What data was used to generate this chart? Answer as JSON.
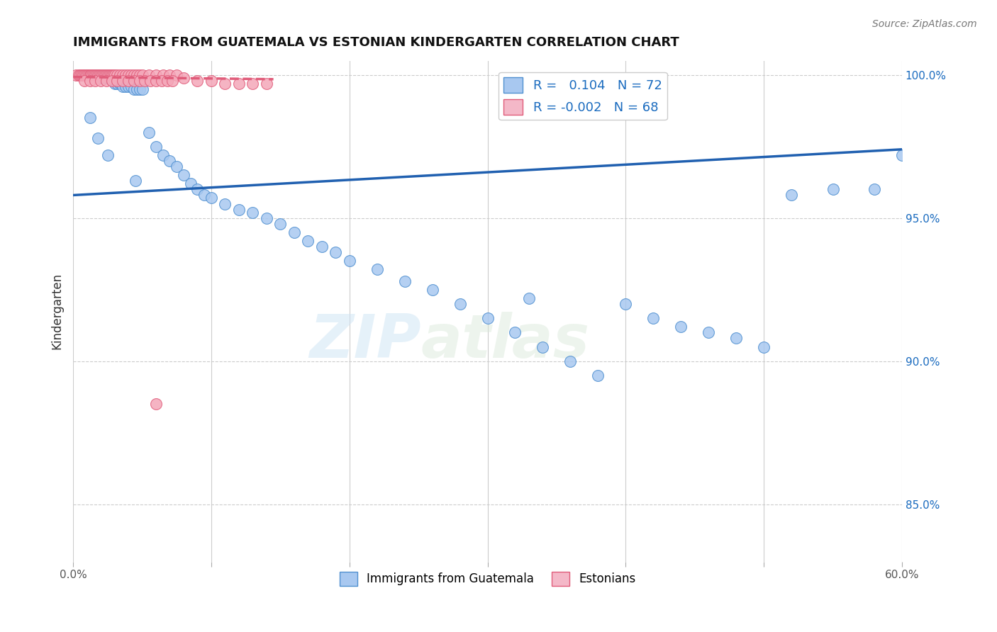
{
  "title": "IMMIGRANTS FROM GUATEMALA VS ESTONIAN KINDERGARTEN CORRELATION CHART",
  "source": "Source: ZipAtlas.com",
  "ylabel": "Kindergarten",
  "xlim": [
    0.0,
    0.6
  ],
  "ylim": [
    0.83,
    1.005
  ],
  "xticks": [
    0.0,
    0.1,
    0.2,
    0.3,
    0.4,
    0.5,
    0.6
  ],
  "xticklabels": [
    "0.0%",
    "",
    "",
    "",
    "",
    "",
    "60.0%"
  ],
  "yticks_right": [
    0.85,
    0.9,
    0.95,
    1.0
  ],
  "ytick_labels_right": [
    "85.0%",
    "90.0%",
    "95.0%",
    "100.0%"
  ],
  "R_blue": "0.104",
  "N_blue": 72,
  "R_pink": "-0.002",
  "N_pink": 68,
  "blue_color": "#a8c8f0",
  "pink_color": "#f4a7b9",
  "blue_edge_color": "#5090d0",
  "pink_edge_color": "#e05c7a",
  "blue_line_color": "#2060b0",
  "pink_line_color": "#e05c7a",
  "legend_blue_fill": "#a8c8f0",
  "legend_pink_fill": "#f4b8c8",
  "blue_scatter_x": [
    0.008,
    0.01,
    0.012,
    0.013,
    0.014,
    0.015,
    0.016,
    0.017,
    0.018,
    0.019,
    0.02,
    0.022,
    0.024,
    0.025,
    0.027,
    0.028,
    0.03,
    0.032,
    0.034,
    0.035,
    0.036,
    0.038,
    0.04,
    0.042,
    0.044,
    0.046,
    0.048,
    0.05,
    0.055,
    0.06,
    0.065,
    0.07,
    0.075,
    0.08,
    0.085,
    0.09,
    0.095,
    0.1,
    0.11,
    0.12,
    0.13,
    0.14,
    0.15,
    0.16,
    0.17,
    0.18,
    0.19,
    0.2,
    0.22,
    0.24,
    0.26,
    0.28,
    0.3,
    0.32,
    0.34,
    0.36,
    0.38,
    0.4,
    0.42,
    0.44,
    0.46,
    0.48,
    0.5,
    0.52,
    0.55,
    0.58,
    0.6,
    0.012,
    0.018,
    0.025,
    0.045,
    0.33
  ],
  "blue_scatter_y": [
    1.0,
    1.0,
    1.0,
    1.0,
    1.0,
    1.0,
    1.0,
    1.0,
    1.0,
    1.0,
    0.999,
    0.999,
    0.999,
    0.999,
    0.999,
    0.998,
    0.997,
    0.997,
    0.997,
    0.997,
    0.996,
    0.996,
    0.996,
    0.996,
    0.995,
    0.995,
    0.995,
    0.995,
    0.98,
    0.975,
    0.972,
    0.97,
    0.968,
    0.965,
    0.962,
    0.96,
    0.958,
    0.957,
    0.955,
    0.953,
    0.952,
    0.95,
    0.948,
    0.945,
    0.942,
    0.94,
    0.938,
    0.935,
    0.932,
    0.928,
    0.925,
    0.92,
    0.915,
    0.91,
    0.905,
    0.9,
    0.895,
    0.92,
    0.915,
    0.912,
    0.91,
    0.908,
    0.905,
    0.958,
    0.96,
    0.96,
    0.972,
    0.985,
    0.978,
    0.972,
    0.963,
    0.922
  ],
  "pink_scatter_x": [
    0.002,
    0.004,
    0.005,
    0.006,
    0.007,
    0.008,
    0.009,
    0.01,
    0.011,
    0.012,
    0.013,
    0.014,
    0.015,
    0.016,
    0.017,
    0.018,
    0.019,
    0.02,
    0.021,
    0.022,
    0.023,
    0.024,
    0.025,
    0.026,
    0.027,
    0.028,
    0.029,
    0.03,
    0.032,
    0.034,
    0.036,
    0.038,
    0.04,
    0.042,
    0.044,
    0.046,
    0.048,
    0.05,
    0.055,
    0.06,
    0.065,
    0.07,
    0.075,
    0.08,
    0.09,
    0.1,
    0.11,
    0.12,
    0.13,
    0.14,
    0.008,
    0.012,
    0.016,
    0.02,
    0.024,
    0.028,
    0.032,
    0.036,
    0.04,
    0.044,
    0.048,
    0.052,
    0.056,
    0.06,
    0.064,
    0.068,
    0.072,
    0.06
  ],
  "pink_scatter_y": [
    1.0,
    1.0,
    1.0,
    1.0,
    1.0,
    1.0,
    1.0,
    1.0,
    1.0,
    1.0,
    1.0,
    1.0,
    1.0,
    1.0,
    1.0,
    1.0,
    1.0,
    1.0,
    1.0,
    1.0,
    1.0,
    1.0,
    1.0,
    1.0,
    1.0,
    1.0,
    1.0,
    1.0,
    1.0,
    1.0,
    1.0,
    1.0,
    1.0,
    1.0,
    1.0,
    1.0,
    1.0,
    1.0,
    1.0,
    1.0,
    1.0,
    1.0,
    1.0,
    0.999,
    0.998,
    0.998,
    0.997,
    0.997,
    0.997,
    0.997,
    0.998,
    0.998,
    0.998,
    0.998,
    0.998,
    0.998,
    0.998,
    0.998,
    0.998,
    0.998,
    0.998,
    0.998,
    0.998,
    0.998,
    0.998,
    0.998,
    0.998,
    0.885
  ],
  "blue_trendline_x": [
    0.0,
    0.6
  ],
  "blue_trendline_y": [
    0.958,
    0.974
  ],
  "pink_trendline_x": [
    0.0,
    0.145
  ],
  "pink_trendline_y": [
    0.9993,
    0.9985
  ],
  "watermark_zip": "ZIP",
  "watermark_atlas": "atlas",
  "background_color": "#ffffff",
  "grid_color": "#cccccc",
  "text_color_blue": "#1a6bbf",
  "text_color_dark": "#333333"
}
